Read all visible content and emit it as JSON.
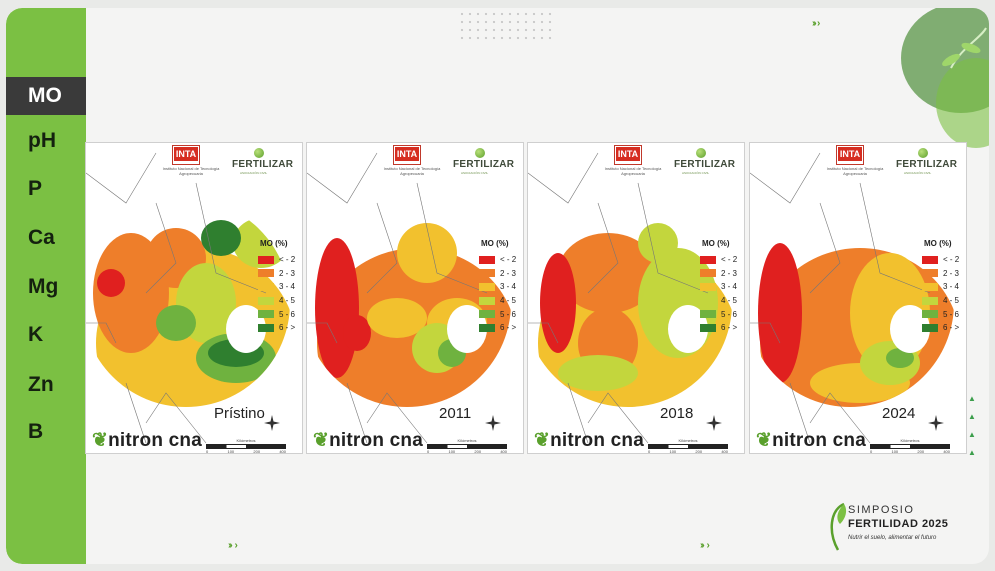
{
  "sidebar": {
    "items": [
      {
        "label": "MO",
        "active": true
      },
      {
        "label": "pH",
        "active": false
      },
      {
        "label": "P",
        "active": false
      },
      {
        "label": "Ca",
        "active": false
      },
      {
        "label": "Mg",
        "active": false
      },
      {
        "label": "K",
        "active": false
      },
      {
        "label": "Zn",
        "active": false
      },
      {
        "label": "B",
        "active": false
      }
    ]
  },
  "maps": [
    {
      "year": "Prístino"
    },
    {
      "year": "2011"
    },
    {
      "year": "2018"
    },
    {
      "year": "2024"
    }
  ],
  "logos": {
    "inta": "INTA",
    "inta_sub": "Instituto Nacional de Tecnología Agropecuaria",
    "fertilizar": "FERTILIZAR",
    "fertilizar_sub": "ASOCIACIÓN CIVIL"
  },
  "legend": {
    "title": "MO (%)",
    "items": [
      {
        "label": "< - 2",
        "color": "#e0201f"
      },
      {
        "label": "2 - 3",
        "color": "#ee7e2a"
      },
      {
        "label": "3 - 4",
        "color": "#f2c12e"
      },
      {
        "label": "4 - 5",
        "color": "#c3d63d"
      },
      {
        "label": "5 - 6",
        "color": "#6fb23f"
      },
      {
        "label": "6 - >",
        "color": "#2f7f2f"
      }
    ]
  },
  "brand": {
    "left": "nitron",
    "right": "cna"
  },
  "scale": {
    "label": "Kilómetros",
    "ticks": [
      "0",
      "100",
      "200",
      "400"
    ]
  },
  "symposio": {
    "title": "SIMPOSIO",
    "subtitle": "FERTILIDAD 2025",
    "tagline": "Nutrir el suelo, alimentar el futuro"
  },
  "colors": {
    "accent": "#7bc043",
    "active_bg": "#3a3a3a"
  }
}
